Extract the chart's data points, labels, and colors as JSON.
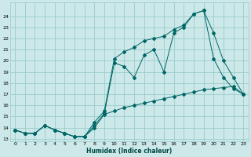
{
  "xlabel": "Humidex (Indice chaleur)",
  "bg_color": "#cce8e8",
  "grid_color": "#99cccc",
  "line_color": "#006666",
  "xlim": [
    -0.5,
    23.5
  ],
  "ylim": [
    12.8,
    25.2
  ],
  "yticks": [
    13,
    14,
    15,
    16,
    17,
    18,
    19,
    20,
    21,
    22,
    23,
    24
  ],
  "xticks": [
    0,
    1,
    2,
    3,
    4,
    5,
    6,
    7,
    8,
    9,
    10,
    11,
    12,
    13,
    14,
    15,
    16,
    17,
    18,
    19,
    20,
    21,
    22,
    23
  ],
  "series1_x": [
    0,
    1,
    2,
    3,
    4,
    5,
    6,
    7,
    8,
    9,
    10,
    11,
    12,
    13,
    14,
    15,
    16,
    17,
    18,
    19,
    20,
    21,
    22,
    23
  ],
  "series1_y": [
    13.8,
    13.5,
    13.5,
    14.2,
    13.8,
    13.5,
    13.2,
    13.2,
    14.2,
    15.3,
    19.8,
    19.5,
    18.5,
    20.5,
    21.0,
    19.0,
    22.5,
    23.0,
    24.2,
    24.5,
    22.5,
    20.0,
    18.5,
    17.0
  ],
  "series2_x": [
    0,
    1,
    2,
    3,
    4,
    5,
    6,
    7,
    8,
    9,
    10,
    11,
    12,
    13,
    14,
    15,
    16,
    17,
    18,
    19,
    20,
    21,
    22,
    23
  ],
  "series2_y": [
    13.8,
    13.5,
    13.5,
    14.2,
    13.8,
    13.5,
    13.2,
    13.2,
    14.0,
    15.2,
    15.5,
    15.8,
    16.0,
    16.2,
    16.4,
    16.6,
    16.8,
    17.0,
    17.2,
    17.4,
    17.5,
    17.6,
    17.7,
    17.0
  ],
  "series3_x": [
    0,
    1,
    2,
    3,
    4,
    5,
    6,
    7,
    8,
    9,
    10,
    11,
    12,
    13,
    14,
    15,
    16,
    17,
    18,
    19,
    20,
    21,
    22,
    23
  ],
  "series3_y": [
    13.8,
    13.5,
    13.5,
    14.2,
    13.8,
    13.5,
    13.2,
    13.2,
    14.5,
    15.5,
    20.2,
    20.8,
    21.2,
    21.8,
    22.0,
    22.2,
    22.8,
    23.2,
    24.2,
    24.5,
    20.2,
    18.5,
    17.5,
    17.0
  ]
}
